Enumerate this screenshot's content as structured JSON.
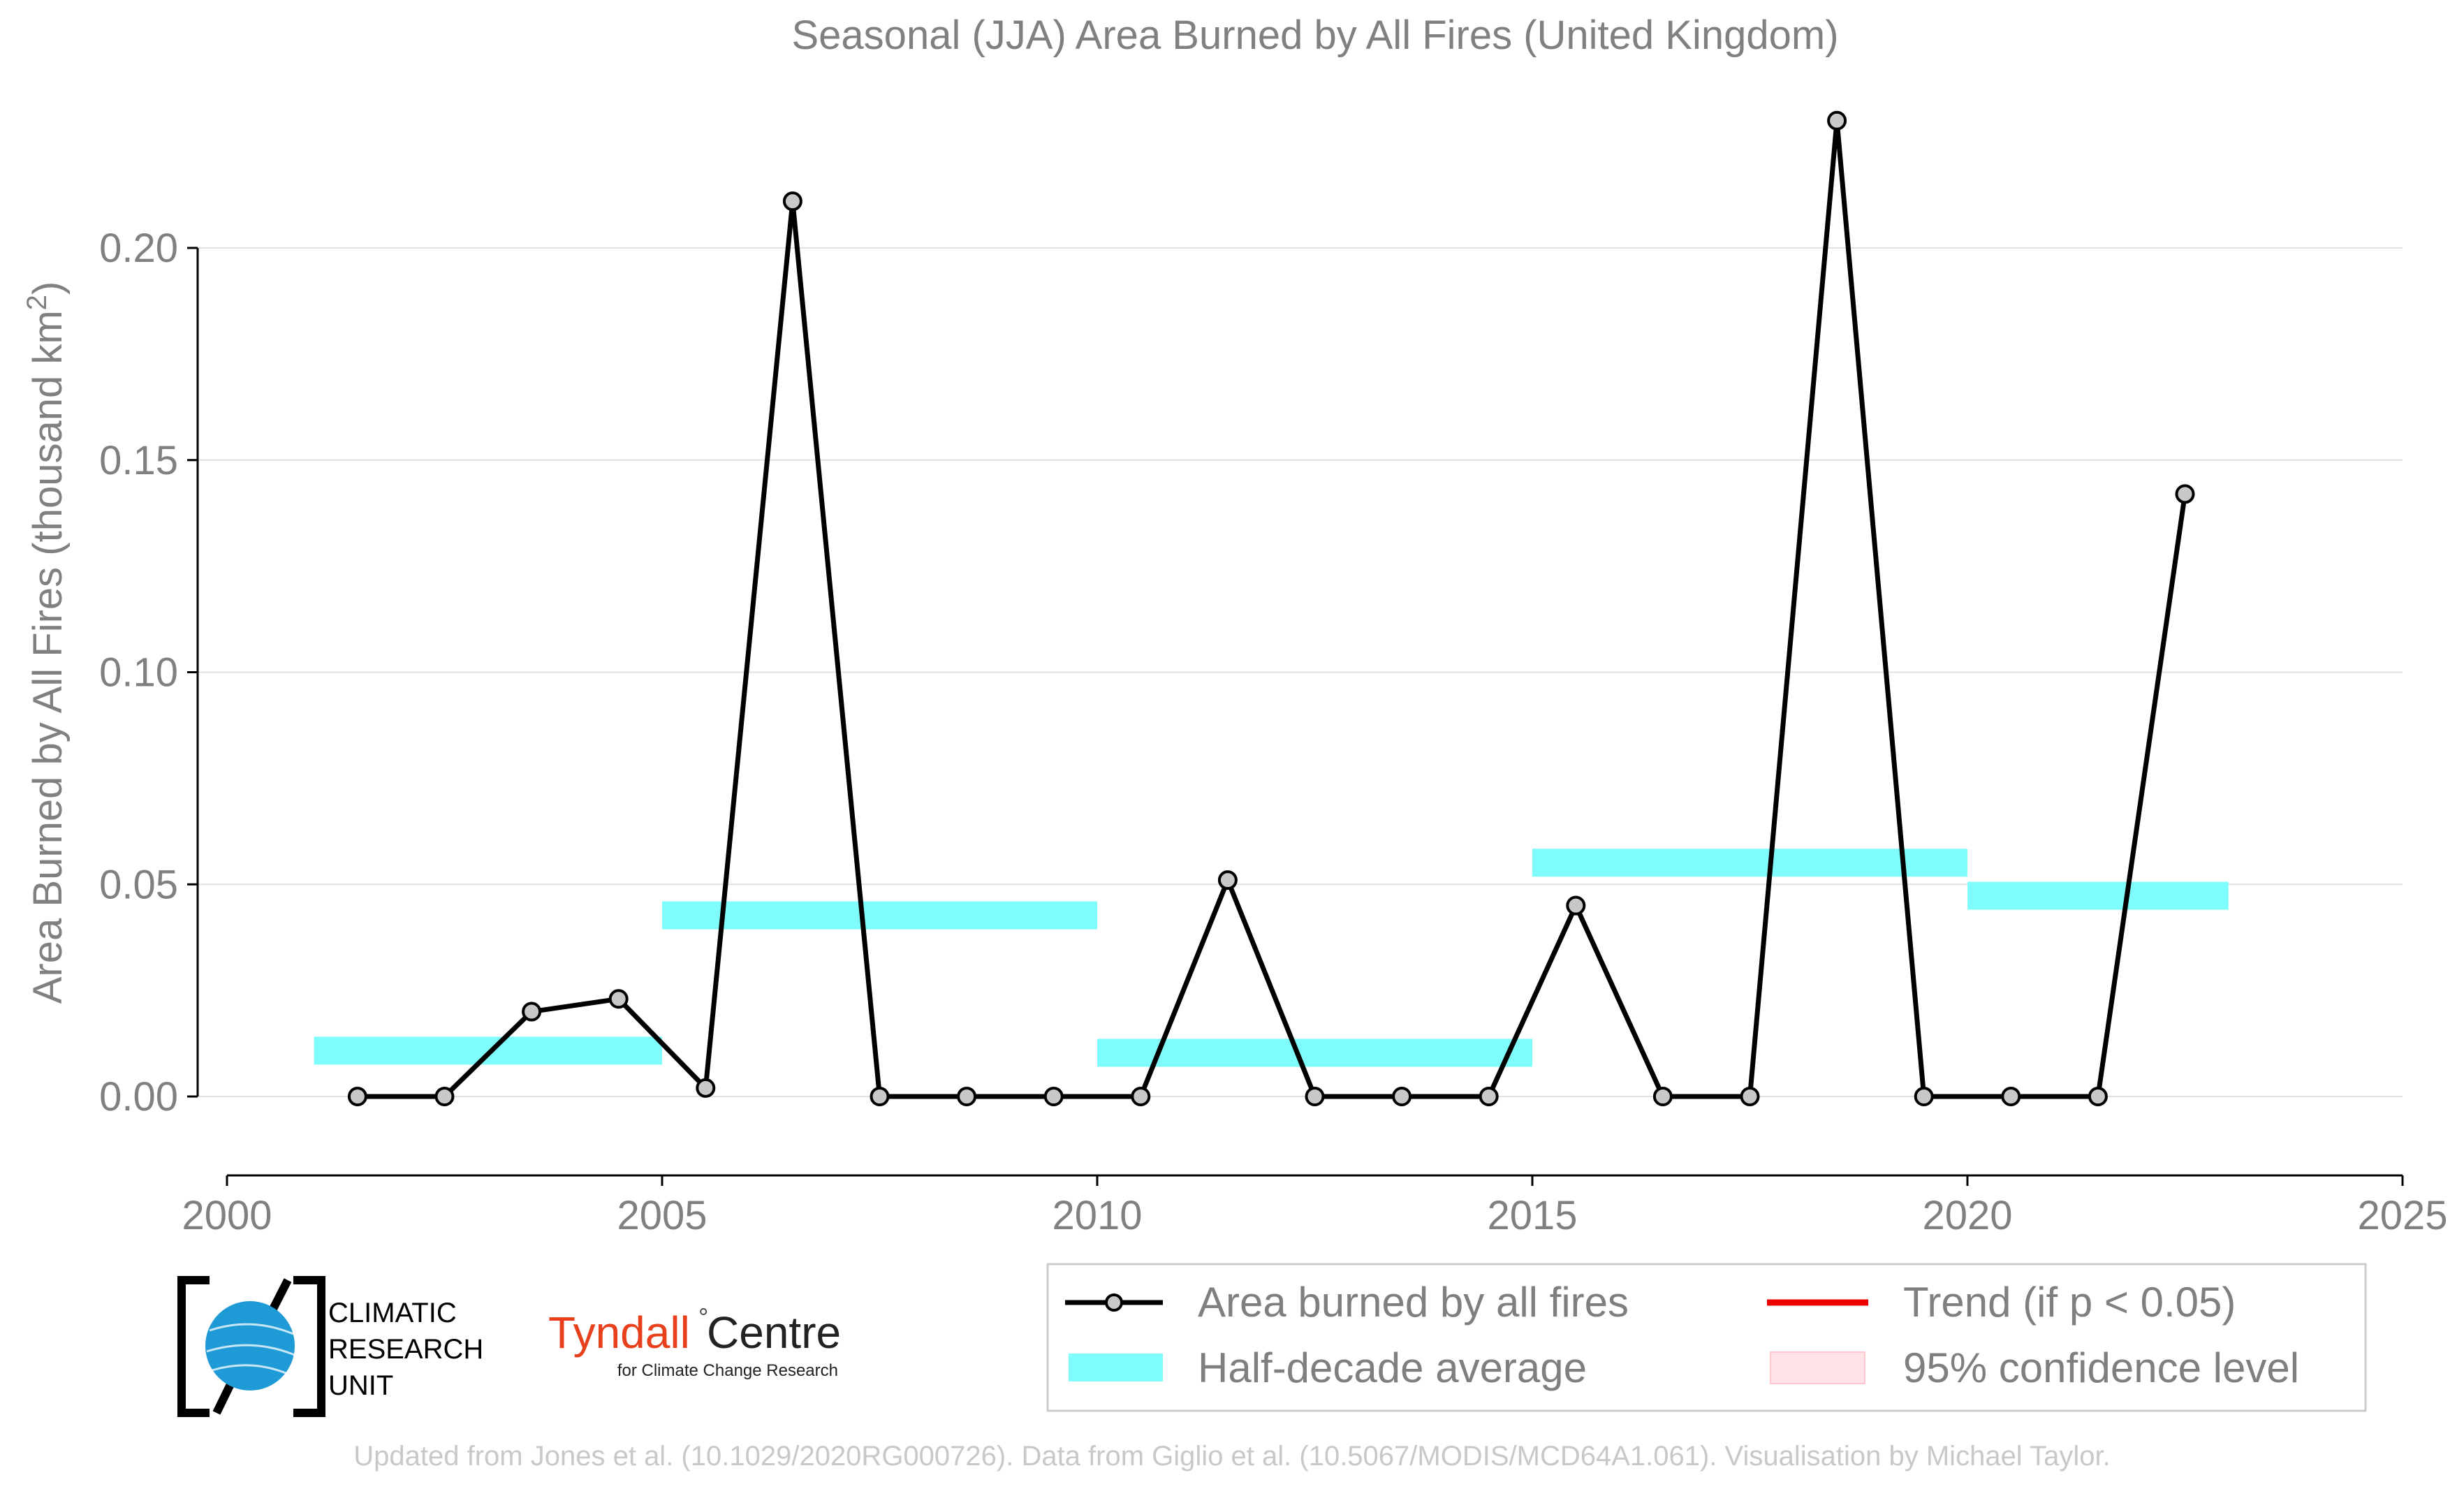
{
  "chart_data": {
    "type": "line",
    "title": "Seasonal (JJA) Area Burned by All Fires (United Kingdom)",
    "ylabel": "Area Burned by All Fires (thousand km²)",
    "xlabel": "",
    "xlim": [
      2000,
      2025
    ],
    "ylim": [
      -0.014,
      0.23
    ],
    "x_ticks": [
      "2000",
      "2005",
      "2010",
      "2015",
      "2020",
      "2025"
    ],
    "y_ticks": [
      "0.00",
      "0.05",
      "0.10",
      "0.15",
      "0.20"
    ],
    "grid": true,
    "series": [
      {
        "name": "Area burned by all fires",
        "color": "#000000",
        "x": [
          2001.5,
          2002.5,
          2003.5,
          2004.5,
          2005.5,
          2006.5,
          2007.5,
          2008.5,
          2009.5,
          2010.5,
          2011.5,
          2012.5,
          2013.5,
          2014.5,
          2015.5,
          2016.5,
          2017.5,
          2018.5,
          2019.5,
          2020.5,
          2021.5,
          2022.5
        ],
        "values": [
          0.0,
          0.0,
          0.02,
          0.023,
          0.002,
          0.211,
          0.0,
          0.0,
          0.0,
          0.0,
          0.051,
          0.0,
          0.0,
          0.0,
          0.045,
          0.0,
          0.0,
          0.23,
          0.0,
          0.0,
          0.0,
          0.142
        ]
      }
    ],
    "half_decade_average": {
      "name": "Half-decade average",
      "color": "#7ffcfc",
      "segments": [
        {
          "start": 2001,
          "end": 2005,
          "value": 0.0108
        },
        {
          "start": 2005,
          "end": 2010,
          "value": 0.0427
        },
        {
          "start": 2010,
          "end": 2015,
          "value": 0.0103
        },
        {
          "start": 2015,
          "end": 2020,
          "value": 0.0551
        },
        {
          "start": 2020,
          "end": 2023,
          "value": 0.0473
        }
      ]
    },
    "legend": {
      "placement": "bottom-right",
      "entries": [
        {
          "label": "Area burned by all fires",
          "color": "#000000"
        },
        {
          "label": "Half-decade average",
          "color": "#7ffcfc"
        },
        {
          "label": "Trend (if p < 0.05)",
          "color": "#ee0000"
        },
        {
          "label": "95% confidence level",
          "color": "#ffe3e6"
        }
      ]
    }
  },
  "logos": {
    "cru_line1": "CLIMATIC",
    "cru_line2": "RESEARCH",
    "cru_line3": "UNIT",
    "tyndall_name": "Tyndall",
    "tyndall_centre": "Centre",
    "tyndall_sub": "for Climate Change Research"
  },
  "footer": {
    "credit": "Updated from Jones et al. (10.1029/2020RG000726). Data from Giglio et al. (10.5067/MODIS/MCD64A1.061). Visualisation by Michael Taylor."
  }
}
